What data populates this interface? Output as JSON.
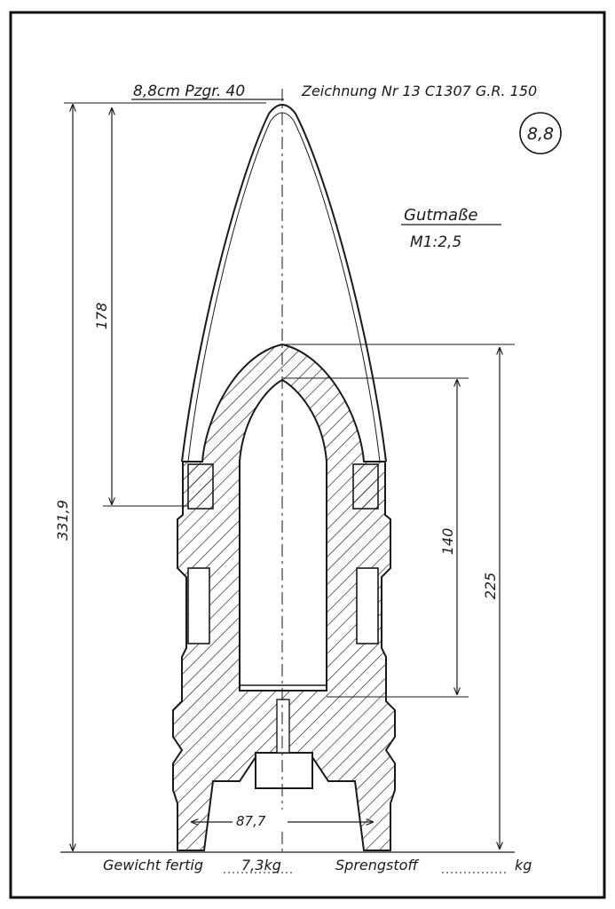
{
  "drawing": {
    "header_left": "8,8cm Pzgr. 40",
    "header_right": "Zeichnung Nr 13 C1307 G.R. 150",
    "caliber_badge": "8,8",
    "title": "Gutmaße",
    "scale": "M1:2,5"
  },
  "dimensions": {
    "overall_length": "331,9",
    "cap_length": "178",
    "body_length": "225",
    "cavity_length": "140",
    "base_diameter": "87,7"
  },
  "footer": {
    "weight_label": "Gewicht fertig",
    "weight_value": "7,3kg",
    "explosive_label": "Sprengstoff",
    "explosive_unit": "kg"
  },
  "colors": {
    "ink": "#1a1a1a",
    "paper": "#ffffff"
  }
}
